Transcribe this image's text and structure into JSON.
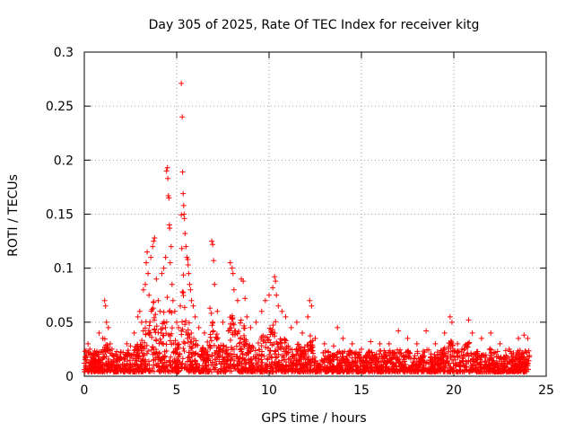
{
  "chart_data": {
    "type": "scatter",
    "title": "Day 305 of 2025, Rate Of TEC Index for receiver kitg",
    "xlabel": "GPS time / hours",
    "ylabel": "ROTI / TECUs",
    "xlim": [
      0,
      25
    ],
    "ylim": [
      0,
      0.3
    ],
    "xticks": [
      "0",
      "5",
      "10",
      "15",
      "20",
      "25"
    ],
    "yticks": [
      "0",
      "0.05",
      "0.1",
      "0.15",
      "0.2",
      "0.25",
      "0.3"
    ],
    "grid": true,
    "marker": "plus",
    "color": "#ff0000",
    "series": [
      {
        "name": "ROTI",
        "points": [
          [
            0.1,
            0.012
          ],
          [
            0.2,
            0.03
          ],
          [
            0.3,
            0.025
          ],
          [
            0.5,
            0.02
          ],
          [
            0.6,
            0.015
          ],
          [
            0.8,
            0.04
          ],
          [
            0.9,
            0.022
          ],
          [
            1.0,
            0.035
          ],
          [
            1.1,
            0.07
          ],
          [
            1.15,
            0.065
          ],
          [
            1.2,
            0.05
          ],
          [
            1.3,
            0.045
          ],
          [
            1.4,
            0.03
          ],
          [
            1.5,
            0.025
          ],
          [
            1.7,
            0.02
          ],
          [
            1.9,
            0.018
          ],
          [
            2.1,
            0.022
          ],
          [
            2.3,
            0.03
          ],
          [
            2.5,
            0.028
          ],
          [
            2.7,
            0.04
          ],
          [
            2.9,
            0.055
          ],
          [
            3.0,
            0.06
          ],
          [
            3.1,
            0.05
          ],
          [
            3.2,
            0.08
          ],
          [
            3.3,
            0.085
          ],
          [
            3.35,
            0.105
          ],
          [
            3.4,
            0.115
          ],
          [
            3.45,
            0.095
          ],
          [
            3.5,
            0.075
          ],
          [
            3.6,
            0.11
          ],
          [
            3.7,
            0.12
          ],
          [
            3.75,
            0.125
          ],
          [
            3.8,
            0.128
          ],
          [
            3.9,
            0.09
          ],
          [
            4.0,
            0.07
          ],
          [
            4.1,
            0.06
          ],
          [
            4.2,
            0.095
          ],
          [
            4.3,
            0.1
          ],
          [
            4.4,
            0.11
          ],
          [
            4.45,
            0.19
          ],
          [
            4.5,
            0.193
          ],
          [
            4.52,
            0.183
          ],
          [
            4.55,
            0.167
          ],
          [
            4.58,
            0.165
          ],
          [
            4.6,
            0.14
          ],
          [
            4.62,
            0.137
          ],
          [
            4.65,
            0.105
          ],
          [
            4.7,
            0.12
          ],
          [
            4.75,
            0.085
          ],
          [
            4.8,
            0.07
          ],
          [
            4.9,
            0.06
          ],
          [
            5.0,
            0.05
          ],
          [
            5.1,
            0.045
          ],
          [
            5.2,
            0.065
          ],
          [
            5.25,
            0.271
          ],
          [
            5.3,
            0.24
          ],
          [
            5.32,
            0.189
          ],
          [
            5.35,
            0.169
          ],
          [
            5.38,
            0.158
          ],
          [
            5.4,
            0.15
          ],
          [
            5.42,
            0.146
          ],
          [
            5.45,
            0.132
          ],
          [
            5.5,
            0.12
          ],
          [
            5.55,
            0.11
          ],
          [
            5.6,
            0.108
          ],
          [
            5.62,
            0.103
          ],
          [
            5.65,
            0.095
          ],
          [
            5.7,
            0.085
          ],
          [
            5.75,
            0.08
          ],
          [
            5.8,
            0.07
          ],
          [
            5.9,
            0.065
          ],
          [
            6.0,
            0.055
          ],
          [
            6.2,
            0.045
          ],
          [
            6.5,
            0.04
          ],
          [
            6.8,
            0.063
          ],
          [
            6.9,
            0.125
          ],
          [
            6.95,
            0.122
          ],
          [
            7.0,
            0.107
          ],
          [
            7.05,
            0.085
          ],
          [
            7.2,
            0.06
          ],
          [
            7.5,
            0.05
          ],
          [
            7.8,
            0.042
          ],
          [
            7.9,
            0.105
          ],
          [
            8.0,
            0.1
          ],
          [
            8.05,
            0.095
          ],
          [
            8.1,
            0.08
          ],
          [
            8.3,
            0.07
          ],
          [
            8.5,
            0.09
          ],
          [
            8.6,
            0.088
          ],
          [
            8.7,
            0.072
          ],
          [
            8.8,
            0.055
          ],
          [
            9.0,
            0.045
          ],
          [
            9.3,
            0.05
          ],
          [
            9.6,
            0.06
          ],
          [
            9.8,
            0.07
          ],
          [
            10.0,
            0.075
          ],
          [
            10.2,
            0.082
          ],
          [
            10.3,
            0.092
          ],
          [
            10.35,
            0.088
          ],
          [
            10.4,
            0.075
          ],
          [
            10.5,
            0.065
          ],
          [
            10.7,
            0.06
          ],
          [
            10.9,
            0.055
          ],
          [
            11.2,
            0.045
          ],
          [
            11.5,
            0.05
          ],
          [
            11.8,
            0.04
          ],
          [
            12.1,
            0.055
          ],
          [
            12.2,
            0.07
          ],
          [
            12.3,
            0.065
          ],
          [
            12.5,
            0.035
          ],
          [
            13.0,
            0.03
          ],
          [
            13.5,
            0.028
          ],
          [
            13.7,
            0.045
          ],
          [
            14.0,
            0.035
          ],
          [
            14.5,
            0.03
          ],
          [
            15.0,
            0.025
          ],
          [
            15.5,
            0.032
          ],
          [
            16.0,
            0.03
          ],
          [
            16.5,
            0.03
          ],
          [
            17.0,
            0.042
          ],
          [
            17.5,
            0.035
          ],
          [
            18.0,
            0.03
          ],
          [
            18.5,
            0.042
          ],
          [
            19.0,
            0.03
          ],
          [
            19.5,
            0.04
          ],
          [
            19.8,
            0.055
          ],
          [
            19.9,
            0.05
          ],
          [
            20.2,
            0.03
          ],
          [
            20.8,
            0.052
          ],
          [
            21.0,
            0.04
          ],
          [
            21.5,
            0.035
          ],
          [
            22.0,
            0.04
          ],
          [
            22.5,
            0.03
          ],
          [
            23.0,
            0.025
          ],
          [
            23.5,
            0.035
          ],
          [
            23.8,
            0.038
          ],
          [
            24.0,
            0.035
          ]
        ]
      }
    ]
  }
}
